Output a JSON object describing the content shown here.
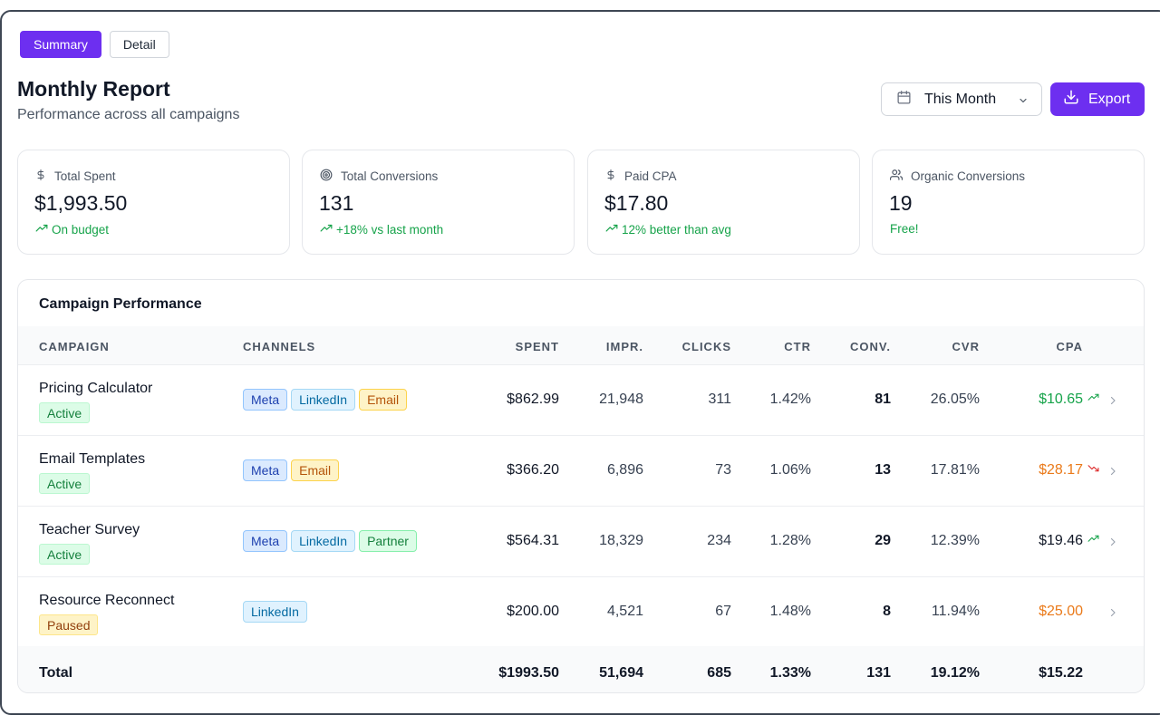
{
  "tabs": [
    {
      "label": "Summary",
      "active": true
    },
    {
      "label": "Detail",
      "active": false
    }
  ],
  "header": {
    "title": "Monthly Report",
    "subtitle": "Performance across all campaigns",
    "date_range": "This Month",
    "export_label": "Export"
  },
  "stats": [
    {
      "icon": "dollar-icon",
      "label": "Total Spent",
      "value": "$1,993.50",
      "note": "On budget",
      "note_icon": "trending-up-icon"
    },
    {
      "icon": "target-icon",
      "label": "Total Conversions",
      "value": "131",
      "note": "+18% vs last month",
      "note_icon": "trending-up-icon"
    },
    {
      "icon": "dollar-icon",
      "label": "Paid CPA",
      "value": "$17.80",
      "note": "12% better than avg",
      "note_icon": "trending-up-icon"
    },
    {
      "icon": "users-icon",
      "label": "Organic Conversions",
      "value": "19",
      "note": "Free!",
      "note_icon": ""
    }
  ],
  "table": {
    "title": "Campaign Performance",
    "columns": {
      "campaign": "CAMPAIGN",
      "channels": "CHANNELS",
      "spent": "SPENT",
      "impr": "IMPR.",
      "clicks": "CLICKS",
      "ctr": "CTR",
      "conv": "CONV.",
      "cvr": "CVR",
      "cpa": "CPA"
    },
    "rows": [
      {
        "name": "Pricing Calculator",
        "status": "Active",
        "channels": [
          "Meta",
          "LinkedIn",
          "Email"
        ],
        "spent": "$862.99",
        "impr": "21,948",
        "clicks": "311",
        "ctr": "1.42%",
        "conv": "81",
        "cvr": "26.05%",
        "cpa": "$10.65",
        "cpa_trend": "up",
        "cpa_color": "#16a34a"
      },
      {
        "name": "Email Templates",
        "status": "Active",
        "channels": [
          "Meta",
          "Email"
        ],
        "spent": "$366.20",
        "impr": "6,896",
        "clicks": "73",
        "ctr": "1.06%",
        "conv": "13",
        "cvr": "17.81%",
        "cpa": "$28.17",
        "cpa_trend": "down",
        "cpa_color": "#ea7a1a"
      },
      {
        "name": "Teacher Survey",
        "status": "Active",
        "channels": [
          "Meta",
          "LinkedIn",
          "Partner"
        ],
        "spent": "$564.31",
        "impr": "18,329",
        "clicks": "234",
        "ctr": "1.28%",
        "conv": "29",
        "cvr": "12.39%",
        "cpa": "$19.46",
        "cpa_trend": "up",
        "cpa_color": "#111827"
      },
      {
        "name": "Resource Reconnect",
        "status": "Paused",
        "channels": [
          "LinkedIn"
        ],
        "spent": "$200.00",
        "impr": "4,521",
        "clicks": "67",
        "ctr": "1.48%",
        "conv": "8",
        "cvr": "11.94%",
        "cpa": "$25.00",
        "cpa_trend": "",
        "cpa_color": "#ea7a1a"
      }
    ],
    "total": {
      "label": "Total",
      "spent": "$1993.50",
      "impr": "51,694",
      "clicks": "685",
      "ctr": "1.33%",
      "conv": "131",
      "cvr": "19.12%",
      "cpa": "$15.22"
    }
  },
  "colors": {
    "accent": "#6d2ff0",
    "positive": "#16a34a",
    "warning": "#ea7a1a"
  }
}
